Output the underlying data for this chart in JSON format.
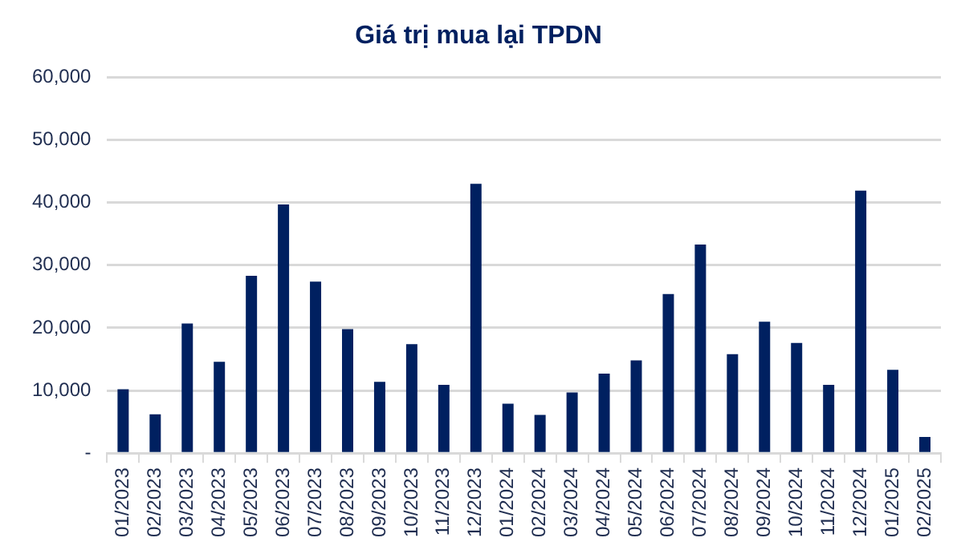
{
  "chart_data": {
    "type": "bar",
    "title": "Giá trị mua lại TPDN",
    "categories": [
      "01/2023",
      "02/2023",
      "03/2023",
      "04/2023",
      "05/2023",
      "06/2023",
      "07/2023",
      "08/2023",
      "09/2023",
      "10/2023",
      "11/2023",
      "12/2023",
      "01/2024",
      "02/2024",
      "03/2024",
      "04/2024",
      "05/2024",
      "06/2024",
      "07/2024",
      "08/2024",
      "09/2024",
      "10/2024",
      "11/2024",
      "12/2024",
      "01/2025",
      "02/2025"
    ],
    "values": [
      10200,
      6200,
      20700,
      14600,
      28300,
      39700,
      27400,
      19800,
      11400,
      17400,
      10900,
      43000,
      7900,
      6100,
      9700,
      12700,
      14800,
      25400,
      33300,
      15800,
      21000,
      17600,
      10900,
      41900,
      13300,
      2600
    ],
    "color": "#002060",
    "ylim": [
      0,
      60000
    ],
    "yticks": [
      {
        "value": 0,
        "label": "-"
      },
      {
        "value": 10000,
        "label": "10,000"
      },
      {
        "value": 20000,
        "label": "20,000"
      },
      {
        "value": 30000,
        "label": "30,000"
      },
      {
        "value": 40000,
        "label": "40,000"
      },
      {
        "value": 50000,
        "label": "50,000"
      },
      {
        "value": 60000,
        "label": "60,000"
      }
    ],
    "grid": "y"
  }
}
